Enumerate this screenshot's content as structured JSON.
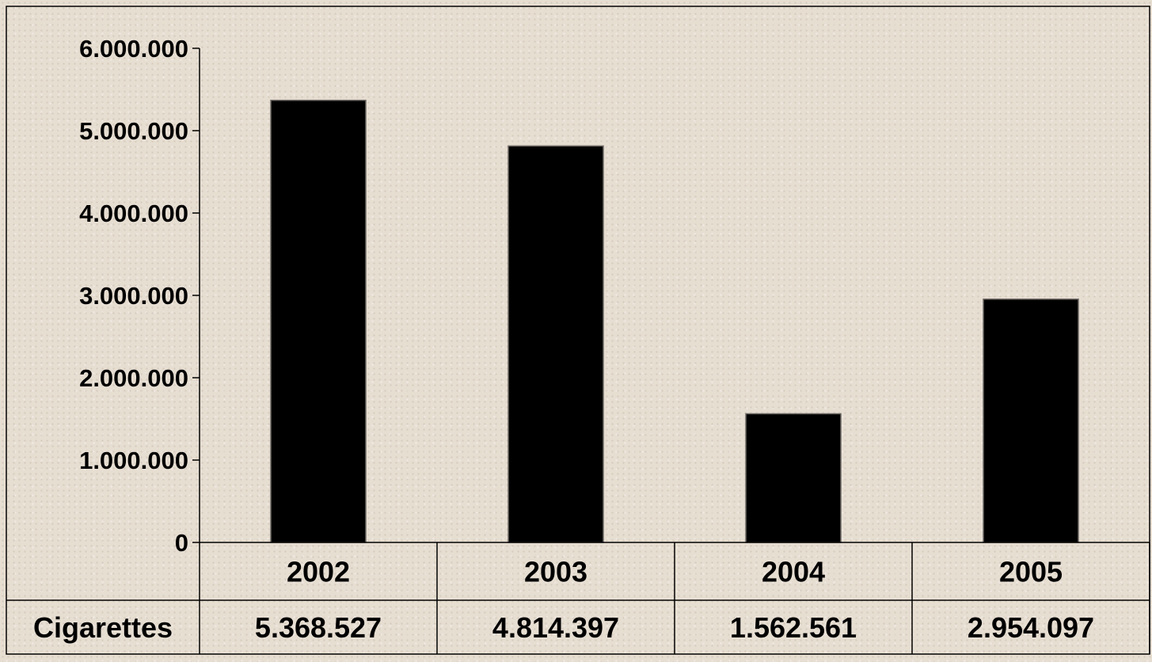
{
  "chart_data": {
    "type": "bar",
    "categories": [
      "2002",
      "2003",
      "2004",
      "2005"
    ],
    "series": [
      {
        "name": "Cigarettes",
        "values": [
          5368527,
          4814397,
          1562561,
          2954097
        ],
        "value_labels": [
          "5.368.527",
          "4.814.397",
          "1.562.561",
          "2.954.097"
        ]
      }
    ],
    "ylim": [
      0,
      6000000
    ],
    "yticks": [
      0,
      1000000,
      2000000,
      3000000,
      4000000,
      5000000,
      6000000
    ],
    "ytick_labels": [
      "0",
      "1.000.000",
      "2.000.000",
      "3.000.000",
      "4.000.000",
      "5.000.000",
      "6.000.000"
    ],
    "grid": false,
    "legend": "data-table",
    "title": "",
    "xlabel": "",
    "ylabel": "",
    "colors": {
      "bar": "#000000",
      "background": "#e7ded2",
      "frame": "#000000"
    }
  }
}
